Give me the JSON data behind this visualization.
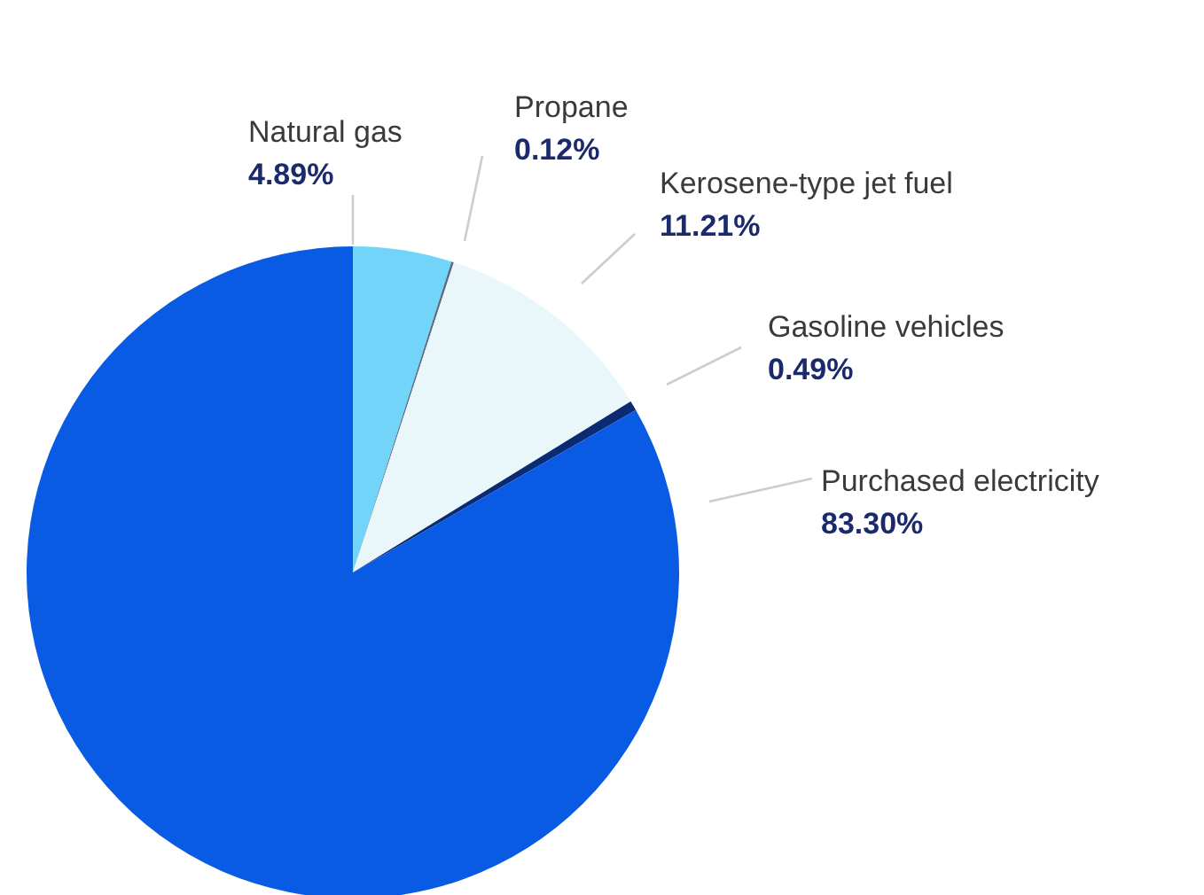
{
  "chart_data": {
    "type": "pie",
    "categories": [
      "Natural gas",
      "Propane",
      "Kerosene-type jet fuel",
      "Gasoline vehicles",
      "Purchased electricity"
    ],
    "values": [
      4.89,
      0.12,
      11.21,
      0.49,
      83.3
    ],
    "value_labels": [
      "4.89%",
      "0.12%",
      "11.21%",
      "0.49%",
      "83.30%"
    ],
    "colors": [
      "#72d4f9",
      "#5a6a80",
      "#e9f6fa",
      "#0b2a74",
      "#0a5be4"
    ]
  }
}
